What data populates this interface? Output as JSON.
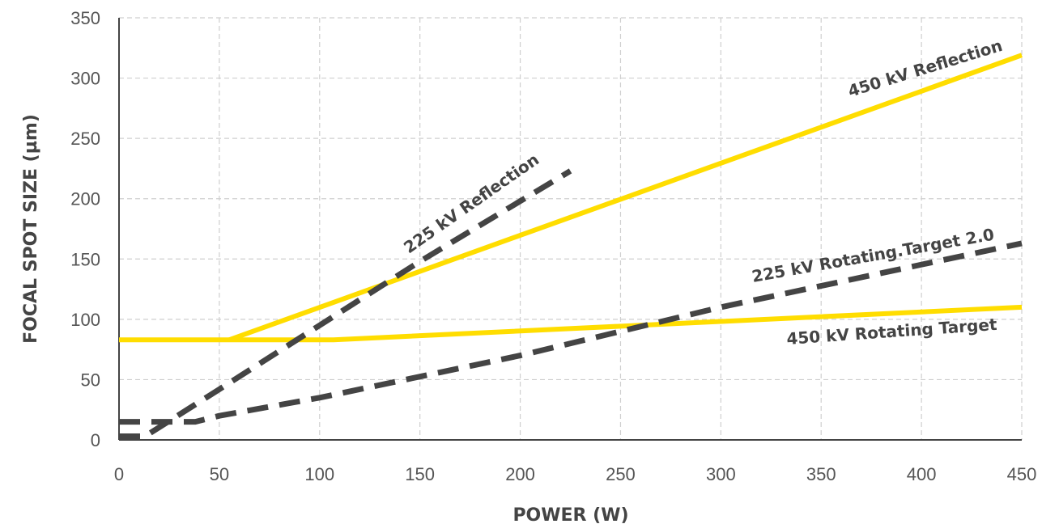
{
  "chart_data": {
    "type": "line",
    "xlabel": "POWER (W)",
    "ylabel": "FOCAL SPOT SIZE (µm)",
    "xlim": [
      0,
      450
    ],
    "ylim": [
      0,
      350
    ],
    "xticks": [
      0,
      50,
      100,
      150,
      200,
      250,
      300,
      350,
      400,
      450
    ],
    "yticks": [
      0,
      50,
      100,
      150,
      200,
      250,
      300,
      350
    ],
    "grid": true,
    "series": [
      {
        "name": "450 kV Reflection",
        "style": "solid",
        "color": "#FFDD00",
        "x": [
          55,
          450
        ],
        "y": [
          83,
          319
        ]
      },
      {
        "name": "450 kV Rotating Target",
        "style": "solid",
        "color": "#FFDD00",
        "x": [
          0,
          107,
          450
        ],
        "y": [
          83,
          83,
          110
        ]
      },
      {
        "name": "225 kV Reflection",
        "style": "dashed",
        "color": "#444444",
        "x": [
          0,
          13,
          50,
          100,
          150,
          225
        ],
        "y": [
          3,
          3,
          42,
          95,
          148,
          223
        ]
      },
      {
        "name": "225 kV Rotating.Target 2.0",
        "style": "dashed",
        "color": "#444444",
        "x": [
          0,
          23,
          38,
          50,
          100,
          200,
          300,
          450
        ],
        "y": [
          15,
          15,
          15,
          20,
          35,
          70,
          110,
          163
        ]
      }
    ]
  }
}
